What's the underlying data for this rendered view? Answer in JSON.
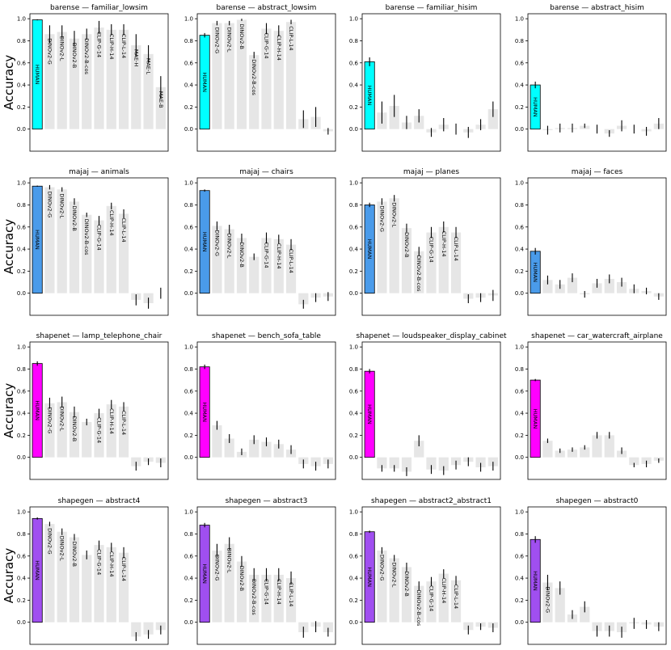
{
  "chart_data": [
    {
      "type": "bar",
      "title": "barense — familiar_lowsim",
      "ylabel": "Accuracy",
      "categories": [
        "HUMAN",
        "DINOv2-G",
        "DINOv2-L",
        "DINOv2-B",
        "DINOv2-B-cos",
        "CLIP-G-14",
        "CLIP-H-14",
        "CLIP-L-14",
        "MAE-H",
        "MAE-L",
        "MAE-B"
      ],
      "values": [
        0.99,
        0.86,
        0.88,
        0.82,
        0.86,
        0.92,
        0.9,
        0.9,
        0.76,
        0.68,
        0.38
      ],
      "errors": [
        0.005,
        0.08,
        0.06,
        0.07,
        0.05,
        0.06,
        0.05,
        0.05,
        0.1,
        0.08,
        0.1
      ],
      "color": "#e6e6e6",
      "highlight_color": "#00ffff",
      "ylim": [
        -0.2,
        1.045
      ],
      "yticks": [
        {
          "value": 0,
          "label": "0.0"
        },
        {
          "value": 0.2,
          "label": "0.2"
        },
        {
          "value": 0.4,
          "label": "0.4"
        },
        {
          "value": 0.6,
          "label": "0.6"
        },
        {
          "value": 0.8,
          "label": "0.8"
        },
        {
          "value": 1,
          "label": "1.0"
        }
      ]
    },
    {
      "type": "bar",
      "title": "barense — abstract_lowsim",
      "categories": [
        "HUMAN",
        "DINOv2-G",
        "DINOv2-L",
        "DINOv2-B",
        "DINOv2-B-cos",
        "CLIP-G-14",
        "CLIP-H-14",
        "CLIP-L-14",
        null,
        null,
        null
      ],
      "values": [
        0.85,
        0.96,
        0.96,
        0.99,
        0.67,
        0.91,
        0.89,
        0.97,
        0.09,
        0.11,
        -0.02
      ],
      "errors": [
        0.02,
        0.02,
        0.02,
        0.01,
        0.03,
        0.05,
        0.05,
        0.02,
        0.08,
        0.09,
        0.03
      ],
      "color": "#e6e6e6",
      "highlight_color": "#00ffff",
      "ylim": [
        -0.2,
        1.045
      ],
      "yticks": [
        {
          "value": 0,
          "label": "0.0"
        },
        {
          "value": 0.2,
          "label": "0.2"
        },
        {
          "value": 0.4,
          "label": "0.4"
        },
        {
          "value": 0.6,
          "label": "0.6"
        },
        {
          "value": 0.8,
          "label": "0.8"
        },
        {
          "value": 1,
          "label": "1.0"
        }
      ]
    },
    {
      "type": "bar",
      "title": "barense — familiar_hisim",
      "categories": [
        "HUMAN",
        null,
        null,
        null,
        null,
        null,
        null,
        null,
        null,
        null,
        null
      ],
      "values": [
        0.61,
        0.15,
        0.21,
        0.06,
        0.12,
        -0.03,
        0.04,
        0.0,
        -0.03,
        0.04,
        0.18
      ],
      "errors": [
        0.04,
        0.1,
        0.1,
        0.06,
        0.06,
        0.04,
        0.06,
        0.05,
        0.05,
        0.05,
        0.07
      ],
      "color": "#e6e6e6",
      "highlight_color": "#00ffff",
      "ylim": [
        -0.2,
        1.045
      ],
      "yticks": [
        {
          "value": 0,
          "label": "0.0"
        },
        {
          "value": 0.2,
          "label": "0.2"
        },
        {
          "value": 0.4,
          "label": "0.4"
        },
        {
          "value": 0.6,
          "label": "0.6"
        },
        {
          "value": 0.8,
          "label": "0.8"
        },
        {
          "value": 1,
          "label": "1.0"
        }
      ]
    },
    {
      "type": "bar",
      "title": "barense — abstract_hisim",
      "categories": [
        "HUMAN",
        null,
        null,
        null,
        null,
        null,
        null,
        null,
        null,
        null,
        null
      ],
      "values": [
        0.4,
        -0.01,
        0.01,
        0.01,
        0.03,
        0.0,
        -0.04,
        0.03,
        0.0,
        -0.02,
        0.05
      ],
      "errors": [
        0.03,
        0.04,
        0.04,
        0.04,
        0.02,
        0.04,
        0.03,
        0.05,
        0.04,
        0.04,
        0.05
      ],
      "color": "#e6e6e6",
      "highlight_color": "#00ffff",
      "ylim": [
        -0.2,
        1.045
      ],
      "yticks": [
        {
          "value": 0,
          "label": "0.0"
        },
        {
          "value": 0.2,
          "label": "0.2"
        },
        {
          "value": 0.4,
          "label": "0.4"
        },
        {
          "value": 0.6,
          "label": "0.6"
        },
        {
          "value": 0.8,
          "label": "0.8"
        },
        {
          "value": 1,
          "label": "1.0"
        }
      ]
    },
    {
      "type": "bar",
      "title": "majaj — animals",
      "ylabel": "Accuracy",
      "categories": [
        "HUMAN",
        "DINOv2-G",
        "DINOv2-L",
        "DINOv2-B",
        "DINOv2-B-cos",
        "CLIP-G-14",
        "CLIP-H-14",
        "CLIP-L-14",
        null,
        null,
        null
      ],
      "values": [
        0.97,
        0.96,
        0.94,
        0.83,
        0.71,
        0.66,
        0.79,
        0.72,
        -0.06,
        -0.09,
        0.0
      ],
      "errors": [
        0.005,
        0.02,
        0.02,
        0.03,
        0.02,
        0.04,
        0.03,
        0.04,
        0.05,
        0.05,
        0.05
      ],
      "color": "#e6e6e6",
      "highlight_color": "#4a9bea",
      "ylim": [
        -0.2,
        1.045
      ],
      "yticks": [
        {
          "value": 0,
          "label": "0.0"
        },
        {
          "value": 0.2,
          "label": "0.2"
        },
        {
          "value": 0.4,
          "label": "0.4"
        },
        {
          "value": 0.6,
          "label": "0.6"
        },
        {
          "value": 0.8,
          "label": "0.8"
        },
        {
          "value": 1,
          "label": "1.0"
        }
      ]
    },
    {
      "type": "bar",
      "title": "majaj — chairs",
      "categories": [
        "HUMAN",
        "DINOv2-G",
        "DINOv2-L",
        "DINOv2-B",
        null,
        "CLIP-G-14",
        "CLIP-H-14",
        "CLIP-L-14",
        null,
        null,
        null
      ],
      "values": [
        0.93,
        0.61,
        0.58,
        0.5,
        0.33,
        0.5,
        0.49,
        0.44,
        -0.1,
        -0.04,
        -0.03
      ],
      "errors": [
        0.01,
        0.04,
        0.04,
        0.04,
        0.03,
        0.05,
        0.04,
        0.05,
        0.04,
        0.04,
        0.04
      ],
      "color": "#e6e6e6",
      "highlight_color": "#4a9bea",
      "ylim": [
        -0.2,
        1.045
      ],
      "yticks": [
        {
          "value": 0,
          "label": "0.0"
        },
        {
          "value": 0.2,
          "label": "0.2"
        },
        {
          "value": 0.4,
          "label": "0.4"
        },
        {
          "value": 0.6,
          "label": "0.6"
        },
        {
          "value": 0.8,
          "label": "0.8"
        },
        {
          "value": 1,
          "label": "1.0"
        }
      ]
    },
    {
      "type": "bar",
      "title": "majaj — planes",
      "categories": [
        "HUMAN",
        "DINOv2-G",
        "DINOv2-L",
        "DINOv2-B",
        "DINOv2-B-cos",
        "CLIP-G-14",
        "CLIP-H-14",
        "CLIP-L-14",
        null,
        null,
        null
      ],
      "values": [
        0.8,
        0.83,
        0.86,
        0.59,
        0.38,
        0.55,
        0.6,
        0.55,
        -0.05,
        -0.04,
        -0.02
      ],
      "errors": [
        0.02,
        0.03,
        0.03,
        0.04,
        0.04,
        0.05,
        0.05,
        0.05,
        0.04,
        0.04,
        0.05
      ],
      "color": "#e6e6e6",
      "highlight_color": "#4a9bea",
      "ylim": [
        -0.2,
        1.045
      ],
      "yticks": [
        {
          "value": 0,
          "label": "0.0"
        },
        {
          "value": 0.2,
          "label": "0.2"
        },
        {
          "value": 0.4,
          "label": "0.4"
        },
        {
          "value": 0.6,
          "label": "0.6"
        },
        {
          "value": 0.8,
          "label": "0.8"
        },
        {
          "value": 1,
          "label": "1.0"
        }
      ]
    },
    {
      "type": "bar",
      "title": "majaj — faces",
      "categories": [
        "HUMAN",
        null,
        null,
        null,
        null,
        null,
        null,
        null,
        null,
        null,
        null
      ],
      "values": [
        0.38,
        0.12,
        0.08,
        0.14,
        -0.01,
        0.09,
        0.13,
        0.1,
        0.04,
        0.02,
        -0.03
      ],
      "errors": [
        0.03,
        0.04,
        0.04,
        0.04,
        0.03,
        0.04,
        0.04,
        0.04,
        0.04,
        0.03,
        0.03
      ],
      "color": "#e6e6e6",
      "highlight_color": "#4a9bea",
      "ylim": [
        -0.2,
        1.045
      ],
      "yticks": [
        {
          "value": 0,
          "label": "0.0"
        },
        {
          "value": 0.2,
          "label": "0.2"
        },
        {
          "value": 0.4,
          "label": "0.4"
        },
        {
          "value": 0.6,
          "label": "0.6"
        },
        {
          "value": 0.8,
          "label": "0.8"
        },
        {
          "value": 1,
          "label": "1.0"
        }
      ]
    },
    {
      "type": "bar",
      "title": "shapenet — lamp_telephone_chair",
      "ylabel": "Accuracy",
      "categories": [
        "HUMAN",
        "DINOv2-G",
        "DINOv2-L",
        "DINOv2-B",
        null,
        "CLIP-G-14",
        "CLIP-H-14",
        "CLIP-L-14",
        null,
        null,
        null
      ],
      "values": [
        0.85,
        0.49,
        0.5,
        0.41,
        0.32,
        0.4,
        0.48,
        0.46,
        -0.08,
        -0.04,
        -0.05
      ],
      "errors": [
        0.02,
        0.05,
        0.05,
        0.05,
        0.03,
        0.04,
        0.04,
        0.04,
        0.04,
        0.03,
        0.04
      ],
      "color": "#e6e6e6",
      "highlight_color": "#ff00ff",
      "ylim": [
        -0.2,
        1.045
      ],
      "yticks": [
        {
          "value": 0,
          "label": "0.0"
        },
        {
          "value": 0.2,
          "label": "0.2"
        },
        {
          "value": 0.4,
          "label": "0.4"
        },
        {
          "value": 0.6,
          "label": "0.6"
        },
        {
          "value": 0.8,
          "label": "0.8"
        },
        {
          "value": 1,
          "label": "1.0"
        }
      ]
    },
    {
      "type": "bar",
      "title": "shapenet — bench_sofa_table",
      "categories": [
        "HUMAN",
        null,
        null,
        null,
        null,
        null,
        null,
        null,
        null,
        null,
        null
      ],
      "values": [
        0.82,
        0.29,
        0.17,
        0.05,
        0.16,
        0.14,
        0.12,
        0.07,
        -0.06,
        -0.08,
        -0.06
      ],
      "errors": [
        0.02,
        0.04,
        0.04,
        0.03,
        0.04,
        0.04,
        0.04,
        0.04,
        0.04,
        0.04,
        0.04
      ],
      "color": "#e6e6e6",
      "highlight_color": "#ff00ff",
      "ylim": [
        -0.2,
        1.045
      ],
      "yticks": [
        {
          "value": 0,
          "label": "0.0"
        },
        {
          "value": 0.2,
          "label": "0.2"
        },
        {
          "value": 0.4,
          "label": "0.4"
        },
        {
          "value": 0.6,
          "label": "0.6"
        },
        {
          "value": 0.8,
          "label": "0.8"
        },
        {
          "value": 1,
          "label": "1.0"
        }
      ]
    },
    {
      "type": "bar",
      "title": "shapenet — loudspeaker_display_cabinet",
      "categories": [
        "HUMAN",
        null,
        null,
        null,
        null,
        null,
        null,
        null,
        null,
        null,
        null
      ],
      "values": [
        0.78,
        -0.1,
        -0.1,
        -0.13,
        0.15,
        -0.11,
        -0.12,
        -0.07,
        -0.04,
        -0.09,
        -0.08
      ],
      "errors": [
        0.02,
        0.03,
        0.03,
        0.04,
        0.05,
        0.04,
        0.04,
        0.04,
        0.04,
        0.04,
        0.04
      ],
      "color": "#e6e6e6",
      "highlight_color": "#ff00ff",
      "ylim": [
        -0.2,
        1.045
      ],
      "yticks": [
        {
          "value": 0,
          "label": "0.0"
        },
        {
          "value": 0.2,
          "label": "0.2"
        },
        {
          "value": 0.4,
          "label": "0.4"
        },
        {
          "value": 0.6,
          "label": "0.6"
        },
        {
          "value": 0.8,
          "label": "0.8"
        },
        {
          "value": 1,
          "label": "1.0"
        }
      ]
    },
    {
      "type": "bar",
      "title": "shapenet — car_watercraft_airplane",
      "categories": [
        "HUMAN",
        null,
        null,
        null,
        null,
        null,
        null,
        null,
        null,
        null,
        null
      ],
      "values": [
        0.7,
        0.15,
        0.06,
        0.07,
        0.09,
        0.2,
        0.2,
        0.06,
        -0.07,
        -0.06,
        -0.03
      ],
      "errors": [
        0.01,
        0.02,
        0.02,
        0.02,
        0.02,
        0.03,
        0.03,
        0.03,
        0.02,
        0.03,
        0.02
      ],
      "color": "#e6e6e6",
      "highlight_color": "#ff00ff",
      "ylim": [
        -0.2,
        1.045
      ],
      "yticks": [
        {
          "value": 0,
          "label": "0.0"
        },
        {
          "value": 0.2,
          "label": "0.2"
        },
        {
          "value": 0.4,
          "label": "0.4"
        },
        {
          "value": 0.6,
          "label": "0.6"
        },
        {
          "value": 0.8,
          "label": "0.8"
        },
        {
          "value": 1,
          "label": "1.0"
        }
      ]
    },
    {
      "type": "bar",
      "title": "shapegen — abstract4",
      "ylabel": "Accuracy",
      "categories": [
        "HUMAN",
        "DINOv2-G",
        "DINOv2-L",
        "DINOv2-B",
        null,
        "CLIP-G-14",
        "CLIP-H-14",
        "CLIP-L-14",
        null,
        null,
        null
      ],
      "values": [
        0.94,
        0.89,
        0.82,
        0.77,
        0.61,
        0.7,
        0.68,
        0.63,
        -0.13,
        -0.11,
        -0.07
      ],
      "errors": [
        0.01,
        0.02,
        0.03,
        0.03,
        0.04,
        0.04,
        0.04,
        0.05,
        0.04,
        0.04,
        0.04
      ],
      "color": "#e6e6e6",
      "highlight_color": "#a04ff0",
      "ylim": [
        -0.2,
        1.045
      ],
      "yticks": [
        {
          "value": 0,
          "label": "0.0"
        },
        {
          "value": 0.2,
          "label": "0.2"
        },
        {
          "value": 0.4,
          "label": "0.4"
        },
        {
          "value": 0.6,
          "label": "0.6"
        },
        {
          "value": 0.8,
          "label": "0.8"
        },
        {
          "value": 1,
          "label": "1.0"
        }
      ]
    },
    {
      "type": "bar",
      "title": "shapegen — abstract3",
      "categories": [
        "HUMAN",
        "DINOv2-G",
        "DINOv2-L",
        "DINOv2-B",
        "DINOv2-B-cos",
        "CLIP-G-14",
        "CLIP-H-14",
        "CLIP-L-14",
        null,
        null,
        null
      ],
      "values": [
        0.88,
        0.65,
        0.71,
        0.55,
        0.43,
        0.43,
        0.43,
        0.4,
        -0.09,
        -0.04,
        -0.09
      ],
      "errors": [
        0.02,
        0.06,
        0.06,
        0.05,
        0.06,
        0.06,
        0.06,
        0.06,
        0.05,
        0.05,
        0.04
      ],
      "color": "#e6e6e6",
      "highlight_color": "#a04ff0",
      "ylim": [
        -0.2,
        1.045
      ],
      "yticks": [
        {
          "value": 0,
          "label": "0.0"
        },
        {
          "value": 0.2,
          "label": "0.2"
        },
        {
          "value": 0.4,
          "label": "0.4"
        },
        {
          "value": 0.6,
          "label": "0.6"
        },
        {
          "value": 0.8,
          "label": "0.8"
        },
        {
          "value": 1,
          "label": "1.0"
        }
      ]
    },
    {
      "type": "bar",
      "title": "shapegen — abstract2_abstract1",
      "categories": [
        "HUMAN",
        "DINOv2-G",
        "DINOv2-L",
        "DINOv2-B",
        "DINOv2-B-cos",
        "CLIP-G-14",
        "CLIP-H-14",
        "CLIP-L-14",
        null,
        null,
        null
      ],
      "values": [
        0.82,
        0.65,
        0.58,
        0.5,
        0.33,
        0.37,
        0.44,
        0.38,
        -0.07,
        -0.04,
        -0.05
      ],
      "errors": [
        0.01,
        0.03,
        0.03,
        0.04,
        0.04,
        0.04,
        0.04,
        0.04,
        0.04,
        0.03,
        0.04
      ],
      "color": "#e6e6e6",
      "highlight_color": "#a04ff0",
      "ylim": [
        -0.2,
        1.045
      ],
      "yticks": [
        {
          "value": 0,
          "label": "0.0"
        },
        {
          "value": 0.2,
          "label": "0.2"
        },
        {
          "value": 0.4,
          "label": "0.4"
        },
        {
          "value": 0.6,
          "label": "0.6"
        },
        {
          "value": 0.8,
          "label": "0.8"
        },
        {
          "value": 1,
          "label": "1.0"
        }
      ]
    },
    {
      "type": "bar",
      "title": "shapegen — abstract0",
      "categories": [
        "HUMAN",
        "DINOv2-G",
        null,
        null,
        null,
        null,
        null,
        null,
        null,
        null,
        null
      ],
      "values": [
        0.75,
        0.36,
        0.31,
        0.07,
        0.14,
        -0.08,
        -0.08,
        -0.09,
        -0.01,
        -0.02,
        -0.04
      ],
      "errors": [
        0.03,
        0.07,
        0.06,
        0.04,
        0.05,
        0.05,
        0.05,
        0.05,
        0.05,
        0.04,
        0.04
      ],
      "color": "#e6e6e6",
      "highlight_color": "#a04ff0",
      "ylim": [
        -0.2,
        1.045
      ],
      "yticks": [
        {
          "value": 0,
          "label": "0.0"
        },
        {
          "value": 0.2,
          "label": "0.2"
        },
        {
          "value": 0.4,
          "label": "0.4"
        },
        {
          "value": 0.6,
          "label": "0.6"
        },
        {
          "value": 0.8,
          "label": "0.8"
        },
        {
          "value": 1,
          "label": "1.0"
        }
      ]
    }
  ]
}
